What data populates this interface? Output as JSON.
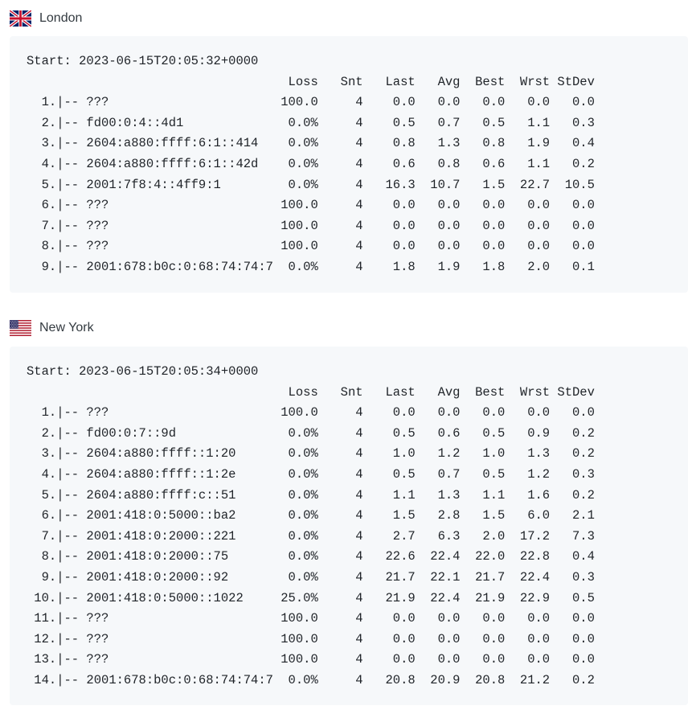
{
  "sections": [
    {
      "location": "London",
      "flag": "uk-flag-icon",
      "lines": [
        "Start: 2023-06-15T20:05:32+0000",
        "                                   Loss   Snt   Last   Avg  Best  Wrst StDev",
        "  1.|-- ???                       100.0     4    0.0   0.0   0.0   0.0   0.0",
        "  2.|-- fd00:0:4::4d1              0.0%     4    0.5   0.7   0.5   1.1   0.3",
        "  3.|-- 2604:a880:ffff:6:1::414    0.0%     4    0.8   1.3   0.8   1.9   0.4",
        "  4.|-- 2604:a880:ffff:6:1::42d    0.0%     4    0.6   0.8   0.6   1.1   0.2",
        "  5.|-- 2001:7f8:4::4ff9:1         0.0%     4   16.3  10.7   1.5  22.7  10.5",
        "  6.|-- ???                       100.0     4    0.0   0.0   0.0   0.0   0.0",
        "  7.|-- ???                       100.0     4    0.0   0.0   0.0   0.0   0.0",
        "  8.|-- ???                       100.0     4    0.0   0.0   0.0   0.0   0.0",
        "  9.|-- 2001:678:b0c:0:68:74:74:7  0.0%     4    1.8   1.9   1.8   2.0   0.1"
      ]
    },
    {
      "location": "New York",
      "flag": "us-flag-icon",
      "lines": [
        "Start: 2023-06-15T20:05:34+0000",
        "                                   Loss   Snt   Last   Avg  Best  Wrst StDev",
        "  1.|-- ???                       100.0     4    0.0   0.0   0.0   0.0   0.0",
        "  2.|-- fd00:0:7::9d               0.0%     4    0.5   0.6   0.5   0.9   0.2",
        "  3.|-- 2604:a880:ffff::1:20       0.0%     4    1.0   1.2   1.0   1.3   0.2",
        "  4.|-- 2604:a880:ffff::1:2e       0.0%     4    0.5   0.7   0.5   1.2   0.3",
        "  5.|-- 2604:a880:ffff:c::51       0.0%     4    1.1   1.3   1.1   1.6   0.2",
        "  6.|-- 2001:418:0:5000::ba2       0.0%     4    1.5   2.8   1.5   6.0   2.1",
        "  7.|-- 2001:418:0:2000::221       0.0%     4    2.7   6.3   2.0  17.2   7.3",
        "  8.|-- 2001:418:0:2000::75        0.0%     4   22.6  22.4  22.0  22.8   0.4",
        "  9.|-- 2001:418:0:2000::92        0.0%     4   21.7  22.1  21.7  22.4   0.3",
        " 10.|-- 2001:418:0:5000::1022     25.0%     4   21.9  22.4  21.9  22.9   0.5",
        " 11.|-- ???                       100.0     4    0.0   0.0   0.0   0.0   0.0",
        " 12.|-- ???                       100.0     4    0.0   0.0   0.0   0.0   0.0",
        " 13.|-- ???                       100.0     4    0.0   0.0   0.0   0.0   0.0",
        " 14.|-- 2001:678:b0c:0:68:74:74:7  0.0%     4   20.8  20.9  20.8  21.2   0.2"
      ]
    }
  ]
}
